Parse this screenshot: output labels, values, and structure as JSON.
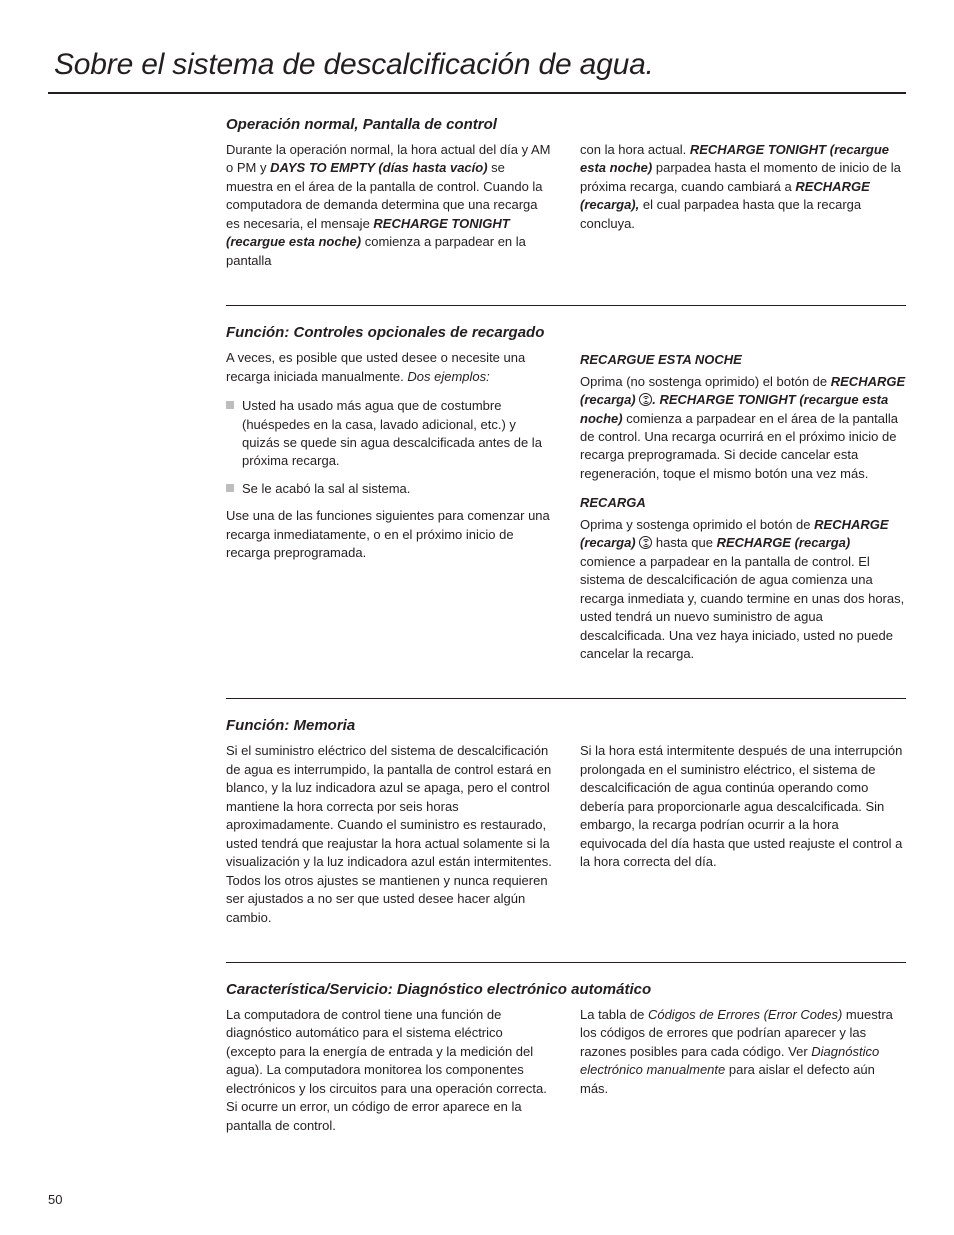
{
  "page": {
    "title": "Sobre el sistema de descalcificación de agua.",
    "number": "50"
  },
  "s1": {
    "heading": "Operación normal, Pantalla de control",
    "c1": {
      "t1": "Durante la operación normal, la hora actual del día y AM o PM y ",
      "b1": "DAYS TO EMPTY (días hasta vacío)",
      "t2": " se muestra en el área de la pantalla de control. Cuando la computadora de demanda determina que una recarga es necesaria, el mensaje ",
      "b2": "RECHARGE TONIGHT (recargue esta noche)",
      "t3": " comienza a parpadear en la pantalla"
    },
    "c2": {
      "t1": "con la hora actual. ",
      "b1": "RECHARGE TONIGHT (recargue esta noche)",
      "t2": " parpadea hasta el momento de inicio de la próxima recarga, cuando cambiará a ",
      "b2": "RECHARGE (recarga),",
      "t3": " el cual parpadea hasta que la recarga concluya."
    }
  },
  "s2": {
    "heading": "Función: Controles opcionales de recargado",
    "c1": {
      "p1a": "A veces, es posible que usted desee o necesite una recarga iniciada manualmente. ",
      "p1i": "Dos ejemplos:",
      "b1": "Usted ha usado más agua que de costumbre (huéspedes en la casa, lavado adicional, etc.) y quizás se quede sin agua descalcificada antes de la próxima recarga.",
      "b2": "Se le acabó la sal al sistema.",
      "p2": "Use una de las funciones siguientes para comenzar una recarga inmediatamente, o en el próximo inicio de recarga preprogramada."
    },
    "c2": {
      "h1": "RECARGUE ESTA NOCHE",
      "p1a": "Oprima (no sostenga oprimido) el botón de ",
      "p1b": "RECHARGE (recarga) ",
      "p1c": ". RECHARGE TONIGHT (recargue esta noche)",
      "p1d": " comienza a parpadear en el área de la pantalla de control. Una recarga ocurrirá en el próximo inicio de recarga preprogramada. Si decide cancelar esta regeneración, toque el mismo botón una vez más.",
      "h2": "RECARGA",
      "p2a": "Oprima y sostenga oprimido el botón de ",
      "p2b": "RECHARGE (recarga) ",
      "p2c": " hasta que ",
      "p2d": "RECHARGE (recarga)",
      "p2e": " comience a parpadear en la pantalla de control. El sistema de descalcificación de agua comienza una recarga inmediata y, cuando termine en unas dos horas, usted tendrá un nuevo suministro de agua descalcificada. Una vez haya iniciado, usted no puede cancelar la recarga."
    }
  },
  "s3": {
    "heading": "Función: Memoria",
    "c1": {
      "p1": "Si el suministro eléctrico del sistema de descalcificación de agua es interrumpido, la pantalla de control estará en blanco, y la luz indicadora azul se apaga, pero el control mantiene la hora correcta por seis horas aproximadamente. Cuando el suministro es restaurado, usted tendrá que reajustar la hora actual solamente si la visualización y la luz indicadora azul están intermitentes. Todos los otros ajustes se mantienen y nunca requieren ser ajustados a no ser que usted desee hacer algún cambio."
    },
    "c2": {
      "p1": "Si la hora está intermitente después de una interrupción prolongada en el suministro eléctrico, el sistema de descalcificación de agua continúa operando como debería para proporcionarle agua descalcificada. Sin embargo, la recarga podrían ocurrir a la hora equivocada del día hasta que usted reajuste el control a la hora correcta del día."
    }
  },
  "s4": {
    "heading": "Característica/Servicio: Diagnóstico electrónico automático",
    "c1": {
      "p1": "La computadora de control tiene una función de diagnóstico automático para el sistema eléctrico (excepto para la energía de entrada y la medición del agua). La computadora monitorea los componentes electrónicos y los circuitos para una operación correcta. Si ocurre un error, un código de error aparece en la pantalla de control."
    },
    "c2": {
      "t1": "La tabla de ",
      "i1": "Códigos de Errores (Error Codes)",
      "t2": " muestra los códigos de errores que podrían aparecer y las razones posibles para cada código. Ver ",
      "i2": "Diagnóstico electrónico manualmente",
      "t3": " para aislar el defecto aún más."
    }
  }
}
